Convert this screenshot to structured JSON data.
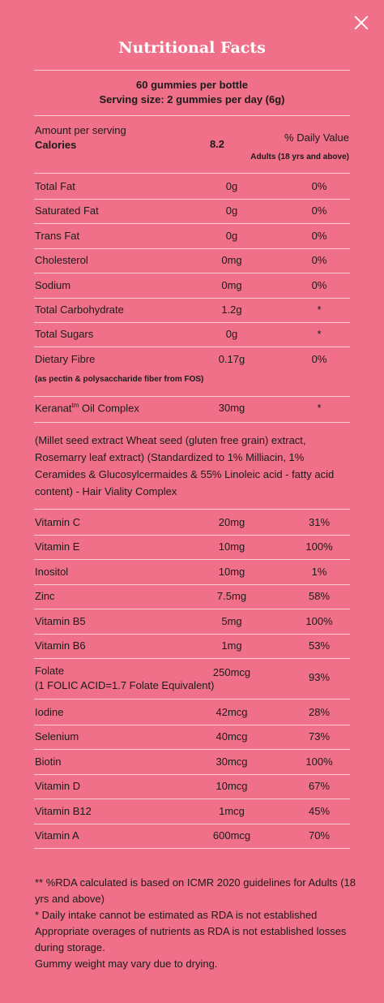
{
  "title": "Nutritional Facts",
  "serving": {
    "line1": "60 gummies per bottle",
    "line2": "Serving size: 2 gummies per day (6g)"
  },
  "header": {
    "amount": "Amount per serving",
    "calories_label": "Calories",
    "calories_value": "8.2",
    "dv_label": "% Daily Value",
    "dv_sub": "Adults (18 yrs and above)"
  },
  "rows1": [
    {
      "name": "Total Fat",
      "amount": "0g",
      "dv": "0%"
    },
    {
      "name": "Saturated Fat",
      "amount": "0g",
      "dv": "0%"
    },
    {
      "name": "Trans Fat",
      "amount": "0g",
      "dv": "0%"
    },
    {
      "name": "Cholesterol",
      "amount": "0mg",
      "dv": "0%"
    },
    {
      "name": "Sodium",
      "amount": "0mg",
      "dv": "0%"
    },
    {
      "name": "Total Carbohydrate",
      "amount": "1.2g",
      "dv": "*"
    },
    {
      "name": "Total Sugars",
      "amount": "0g",
      "dv": "*"
    },
    {
      "name": "Dietary Fibre",
      "amount": "0.17g",
      "dv": "0%"
    }
  ],
  "fibre_note": "(as pectin & polysaccharide fiber from FOS)",
  "keranat": {
    "name": "Keranat",
    "sup": "tm",
    "name_rest": " Oil Complex",
    "amount": "30mg",
    "dv": "*"
  },
  "keranat_desc": "(Millet seed extract Wheat seed (gluten free grain) extract, Rosemarry leaf extract) (Standardized to 1% Milliacin, 1% Ceramides & Glucosylcermaides & 55% Linoleic acid - fatty acid content) - Hair Viality Complex",
  "rows2": [
    {
      "name": "Vitamin C",
      "amount": "20mg",
      "dv": "31%"
    },
    {
      "name": "Vitamin E",
      "amount": "10mg",
      "dv": "100%"
    },
    {
      "name": "Inositol",
      "amount": "10mg",
      "dv": "1%"
    },
    {
      "name": "Zinc",
      "amount": "7.5mg",
      "dv": "58%"
    },
    {
      "name": "Vitamin B5",
      "amount": "5mg",
      "dv": "100%"
    },
    {
      "name": "Vitamin B6",
      "amount": "1mg",
      "dv": "53%"
    }
  ],
  "folate": {
    "name": "Folate",
    "sub": "(1 FOLIC ACID=1.7 Folate Equivalent)",
    "amount": "250mcg",
    "dv": "93%"
  },
  "rows3": [
    {
      "name": "Iodine",
      "amount": "42mcg",
      "dv": "28%"
    },
    {
      "name": "Selenium",
      "amount": "40mcg",
      "dv": "73%"
    },
    {
      "name": "Biotin",
      "amount": "30mcg",
      "dv": "100%"
    },
    {
      "name": "Vitamin D",
      "amount": "10mcg",
      "dv": "67%"
    },
    {
      "name": "Vitamin B12",
      "amount": "1mcg",
      "dv": "45%"
    },
    {
      "name": "Vitamin A",
      "amount": "600mcg",
      "dv": "70%"
    }
  ],
  "footnotes": [
    "** %RDA calculated is based on ICMR 2020 guidelines for Adults (18 yrs and above)",
    "* Daily intake cannot be estimated as RDA is not established",
    "Appropriate overages of nutrients as RDA is not established losses during storage.",
    "Gummy weight may vary due to drying."
  ],
  "colors": {
    "background": "#f07089",
    "text": "#1b1b1b",
    "title": "#ffffff"
  }
}
